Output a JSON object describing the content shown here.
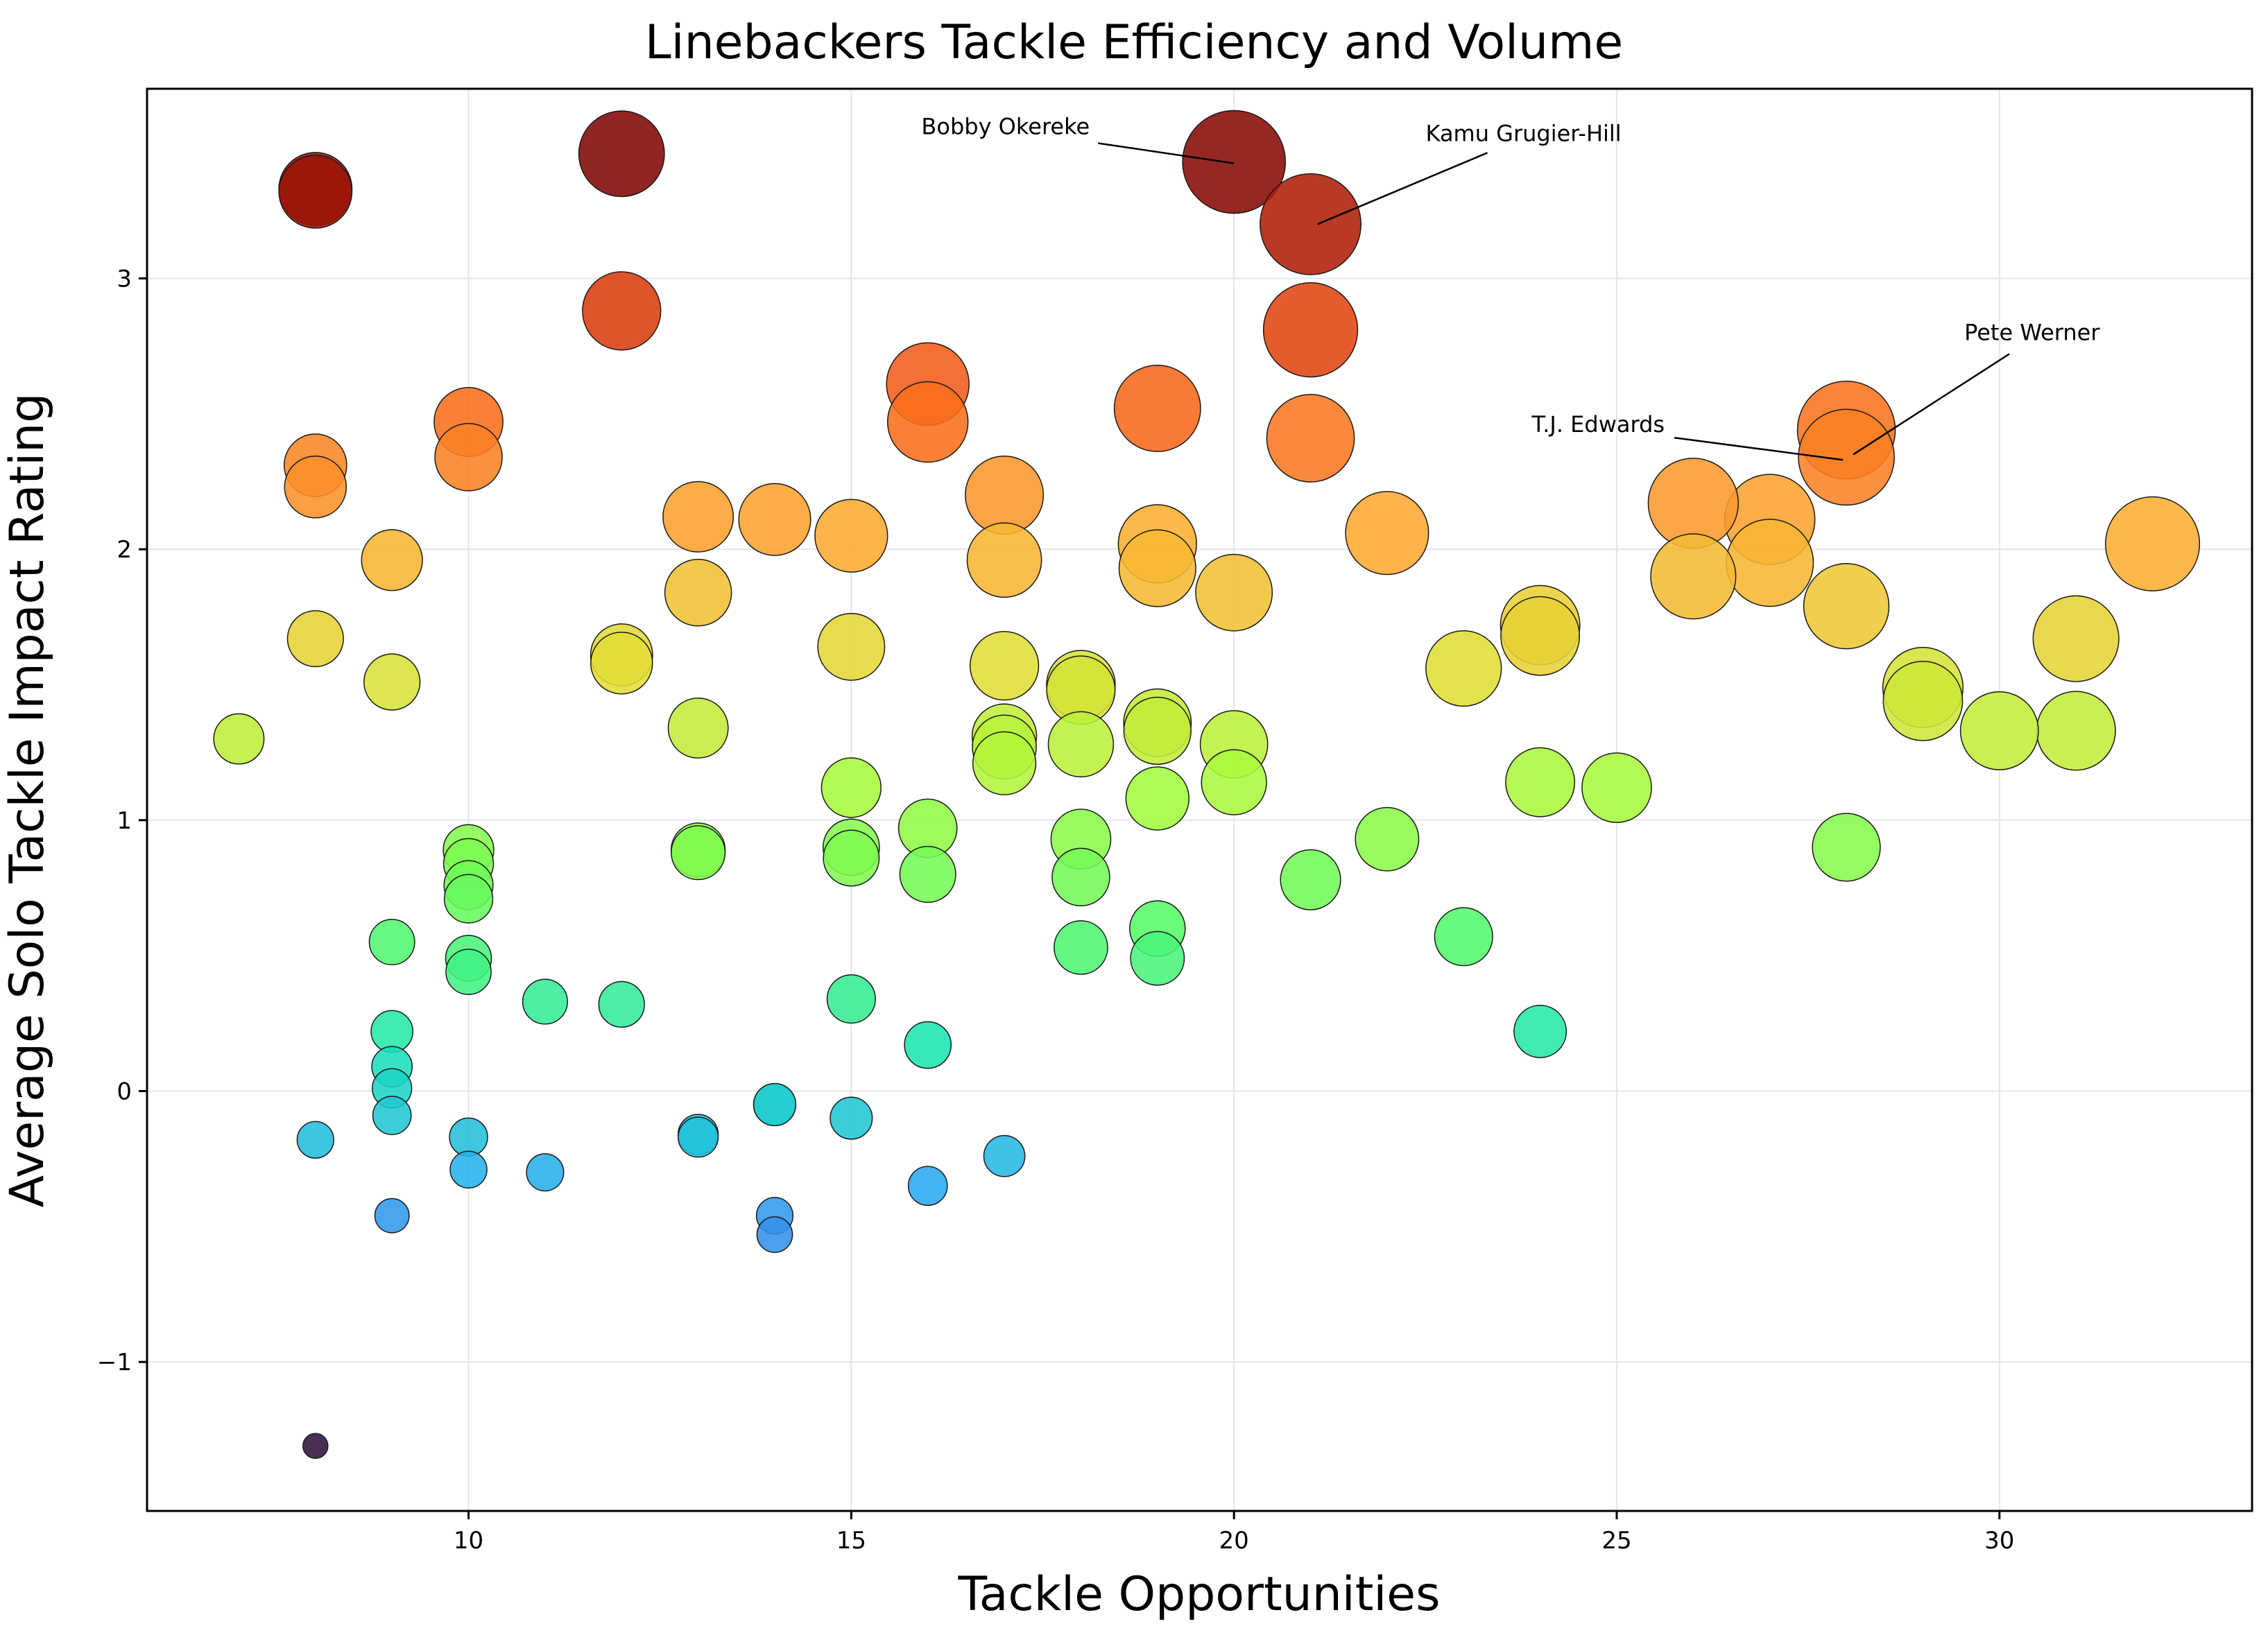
{
  "chart_data": {
    "type": "scatter",
    "title": "Linebackers Tackle Efficiency and Volume",
    "xlabel": "Tackle Opportunities",
    "ylabel": "Average Solo Tackle Impact Rating",
    "xlim": [
      5.8,
      33.3
    ],
    "ylim": [
      -1.55,
      3.7
    ],
    "xticks": [
      10,
      15,
      20,
      25,
      30
    ],
    "yticks": [
      -1,
      0,
      1,
      2,
      3
    ],
    "xtick_labels": [
      "10",
      "15",
      "20",
      "25",
      "30"
    ],
    "ytick_labels": [
      "−1",
      "0",
      "1",
      "2",
      "3"
    ],
    "grid": true,
    "color_encoding": "turbo colormap by impact rating (blue=low, red=high)",
    "size_encoding": "bubble area grows with tackle opportunities and rating",
    "points": [
      {
        "x": 7,
        "y": 1.3
      },
      {
        "x": 8,
        "y": 3.33
      },
      {
        "x": 8,
        "y": 3.32
      },
      {
        "x": 8,
        "y": 2.31
      },
      {
        "x": 8,
        "y": 2.23
      },
      {
        "x": 8,
        "y": 1.67
      },
      {
        "x": 8,
        "y": -0.18
      },
      {
        "x": 8,
        "y": -1.31
      },
      {
        "x": 9,
        "y": 1.96
      },
      {
        "x": 9,
        "y": 1.51
      },
      {
        "x": 9,
        "y": 0.55
      },
      {
        "x": 9,
        "y": 0.22
      },
      {
        "x": 9,
        "y": 0.09
      },
      {
        "x": 9,
        "y": 0.01
      },
      {
        "x": 9,
        "y": -0.09
      },
      {
        "x": 9,
        "y": -0.46
      },
      {
        "x": 10,
        "y": 2.47
      },
      {
        "x": 10,
        "y": 2.34
      },
      {
        "x": 10,
        "y": 0.89
      },
      {
        "x": 10,
        "y": 0.84
      },
      {
        "x": 10,
        "y": 0.76
      },
      {
        "x": 10,
        "y": 0.71
      },
      {
        "x": 10,
        "y": 0.49
      },
      {
        "x": 10,
        "y": 0.44
      },
      {
        "x": 10,
        "y": -0.17
      },
      {
        "x": 10,
        "y": -0.29
      },
      {
        "x": 11,
        "y": 0.33
      },
      {
        "x": 11,
        "y": -0.3
      },
      {
        "x": 12,
        "y": 3.46
      },
      {
        "x": 12,
        "y": 2.88
      },
      {
        "x": 12,
        "y": 1.61
      },
      {
        "x": 12,
        "y": 1.58
      },
      {
        "x": 12,
        "y": 0.32
      },
      {
        "x": 13,
        "y": 2.12
      },
      {
        "x": 13,
        "y": 1.84
      },
      {
        "x": 13,
        "y": 1.34
      },
      {
        "x": 13,
        "y": 0.89
      },
      {
        "x": 13,
        "y": 0.88
      },
      {
        "x": 13,
        "y": -0.16
      },
      {
        "x": 13,
        "y": -0.17
      },
      {
        "x": 14,
        "y": 2.11
      },
      {
        "x": 14,
        "y": -0.05
      },
      {
        "x": 14,
        "y": -0.05
      },
      {
        "x": 14,
        "y": -0.46
      },
      {
        "x": 14,
        "y": -0.53
      },
      {
        "x": 15,
        "y": 2.05
      },
      {
        "x": 15,
        "y": 1.64
      },
      {
        "x": 15,
        "y": 1.12
      },
      {
        "x": 15,
        "y": 0.9
      },
      {
        "x": 15,
        "y": 0.86
      },
      {
        "x": 15,
        "y": 0.34
      },
      {
        "x": 15,
        "y": -0.1
      },
      {
        "x": 16,
        "y": 2.61
      },
      {
        "x": 16,
        "y": 2.47
      },
      {
        "x": 16,
        "y": 0.97
      },
      {
        "x": 16,
        "y": 0.8
      },
      {
        "x": 16,
        "y": 0.17
      },
      {
        "x": 16,
        "y": -0.35
      },
      {
        "x": 17,
        "y": 2.2
      },
      {
        "x": 17,
        "y": 1.96
      },
      {
        "x": 17,
        "y": 1.57
      },
      {
        "x": 17,
        "y": 1.31
      },
      {
        "x": 17,
        "y": 1.27
      },
      {
        "x": 17,
        "y": 1.21
      },
      {
        "x": 17,
        "y": -0.24
      },
      {
        "x": 18,
        "y": 1.5
      },
      {
        "x": 18,
        "y": 1.48
      },
      {
        "x": 18,
        "y": 1.28
      },
      {
        "x": 18,
        "y": 0.93
      },
      {
        "x": 18,
        "y": 0.79
      },
      {
        "x": 18,
        "y": 0.53
      },
      {
        "x": 19,
        "y": 2.52
      },
      {
        "x": 19,
        "y": 2.02
      },
      {
        "x": 19,
        "y": 1.93
      },
      {
        "x": 19,
        "y": 1.36
      },
      {
        "x": 19,
        "y": 1.33
      },
      {
        "x": 19,
        "y": 1.08
      },
      {
        "x": 19,
        "y": 0.6
      },
      {
        "x": 19,
        "y": 0.49
      },
      {
        "x": 20,
        "y": 3.43,
        "label": "Bobby Okereke"
      },
      {
        "x": 20,
        "y": 1.84
      },
      {
        "x": 20,
        "y": 1.28
      },
      {
        "x": 20,
        "y": 1.14
      },
      {
        "x": 21,
        "y": 3.2,
        "label": "Kamu Grugier-Hill"
      },
      {
        "x": 21,
        "y": 2.81
      },
      {
        "x": 21,
        "y": 2.41
      },
      {
        "x": 21,
        "y": 0.78
      },
      {
        "x": 22,
        "y": 2.06
      },
      {
        "x": 22,
        "y": 0.93
      },
      {
        "x": 23,
        "y": 1.56
      },
      {
        "x": 23,
        "y": 0.57
      },
      {
        "x": 24,
        "y": 1.72
      },
      {
        "x": 24,
        "y": 1.68
      },
      {
        "x": 24,
        "y": 1.14
      },
      {
        "x": 24,
        "y": 0.22
      },
      {
        "x": 25,
        "y": 1.12
      },
      {
        "x": 26,
        "y": 2.17
      },
      {
        "x": 26,
        "y": 1.9
      },
      {
        "x": 27,
        "y": 2.11
      },
      {
        "x": 27,
        "y": 1.95
      },
      {
        "x": 28,
        "y": 2.44,
        "label": "Pete Werner"
      },
      {
        "x": 28,
        "y": 2.34,
        "label": "T.J. Edwards"
      },
      {
        "x": 28,
        "y": 1.79
      },
      {
        "x": 28,
        "y": 0.9
      },
      {
        "x": 29,
        "y": 1.49
      },
      {
        "x": 29,
        "y": 1.44
      },
      {
        "x": 30,
        "y": 1.33
      },
      {
        "x": 31,
        "y": 1.67
      },
      {
        "x": 31,
        "y": 1.33
      },
      {
        "x": 32,
        "y": 2.02
      }
    ],
    "annotations": [
      {
        "text": "Bobby Okereke",
        "x": 20,
        "y": 3.43,
        "label_position": "upper-left"
      },
      {
        "text": "Kamu Grugier-Hill",
        "x": 21,
        "y": 3.2,
        "label_position": "upper-right"
      },
      {
        "text": "Pete Werner",
        "x": 28,
        "y": 2.35,
        "label_position": "upper-right"
      },
      {
        "text": "T.J. Edwards",
        "x": 28,
        "y": 2.33,
        "label_position": "left"
      }
    ]
  }
}
